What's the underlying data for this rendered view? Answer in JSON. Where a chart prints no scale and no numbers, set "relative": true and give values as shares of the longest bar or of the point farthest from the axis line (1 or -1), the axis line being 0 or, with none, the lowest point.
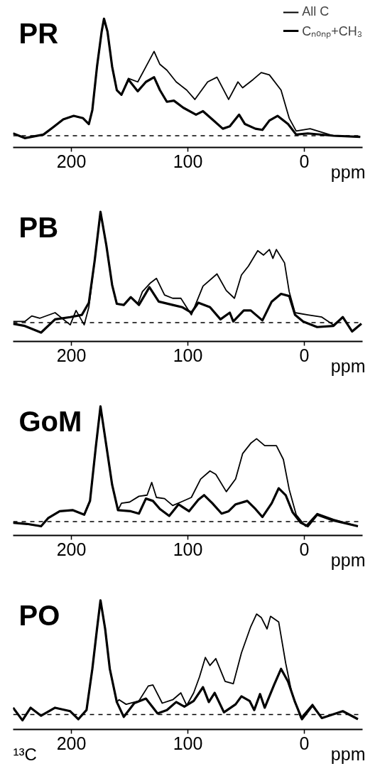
{
  "chart_data": [
    {
      "type": "line",
      "title": "PR",
      "xlabel": "ppm",
      "relative": true,
      "xlim": [
        250,
        -50
      ],
      "xticks": [
        200,
        100,
        0
      ],
      "tick_labels": "x",
      "grid": false,
      "marker": "none",
      "line_style": "solid",
      "legend": "top right",
      "ref_lines": [
        {
          "axis": "y",
          "value": 0,
          "label": null,
          "line_style": "dashed",
          "color": "#000000"
        }
      ],
      "series": [
        {
          "name": "All C",
          "color": "#000000",
          "x": [
            250,
            240,
            224,
            216,
            207,
            198,
            190,
            185,
            182,
            178,
            174,
            172,
            169,
            165,
            161,
            157,
            151,
            143,
            136,
            129,
            124,
            118,
            110,
            101,
            94,
            83,
            75,
            65,
            57,
            53,
            44,
            37,
            30,
            20,
            13,
            7,
            -5,
            -25,
            -48
          ],
          "values": [
            0.02,
            -0.02,
            0.01,
            0.07,
            0.14,
            0.17,
            0.15,
            0.1,
            0.22,
            0.59,
            0.89,
            1.0,
            0.89,
            0.59,
            0.39,
            0.35,
            0.49,
            0.46,
            0.59,
            0.72,
            0.61,
            0.56,
            0.46,
            0.39,
            0.31,
            0.46,
            0.5,
            0.31,
            0.46,
            0.41,
            0.48,
            0.54,
            0.52,
            0.39,
            0.15,
            0.04,
            0.06,
            0.0,
            -0.01
          ]
        },
        {
          "name": "Cₙₒₙₚ+CH₃",
          "color": "#000000",
          "x": [
            250,
            240,
            224,
            216,
            207,
            198,
            190,
            185,
            182,
            178,
            174,
            172,
            169,
            165,
            161,
            157,
            151,
            143,
            136,
            129,
            124,
            118,
            112,
            104,
            93,
            87,
            79,
            70,
            64,
            56,
            51,
            42,
            36,
            30,
            23,
            14,
            7,
            -3,
            -25,
            -48
          ],
          "values": [
            0.02,
            -0.02,
            0.01,
            0.07,
            0.14,
            0.17,
            0.15,
            0.1,
            0.22,
            0.59,
            0.89,
            1.0,
            0.89,
            0.59,
            0.39,
            0.35,
            0.48,
            0.38,
            0.46,
            0.5,
            0.39,
            0.29,
            0.3,
            0.24,
            0.18,
            0.21,
            0.14,
            0.06,
            0.08,
            0.18,
            0.1,
            0.06,
            0.05,
            0.13,
            0.17,
            0.1,
            0.01,
            0.02,
            0.0,
            -0.01
          ]
        }
      ]
    },
    {
      "type": "line",
      "title": "PB",
      "xlabel": "ppm",
      "relative": true,
      "xlim": [
        250,
        -50
      ],
      "xticks": [
        200,
        100,
        0
      ],
      "tick_labels": "x",
      "grid": false,
      "marker": "none",
      "line_style": "solid",
      "ref_lines": [
        {
          "axis": "y",
          "value": 0,
          "label": null,
          "line_style": "dashed",
          "color": "#000000"
        }
      ],
      "series": [
        {
          "color": "#000000",
          "x": [
            250,
            240,
            234,
            227,
            214,
            201,
            196,
            189,
            185,
            180,
            175,
            170,
            165,
            161,
            155,
            149,
            143,
            139,
            132,
            127,
            120,
            113,
            106,
            97,
            87,
            75,
            67,
            60,
            54,
            48,
            40,
            35,
            30,
            27,
            24,
            17,
            13,
            8,
            -3,
            -15,
            -25,
            -33,
            -41,
            -49
          ],
          "values": [
            0.01,
            0.01,
            0.06,
            0.04,
            0.09,
            -0.02,
            0.11,
            -0.02,
            0.14,
            0.56,
            1.0,
            0.7,
            0.34,
            0.17,
            0.16,
            0.23,
            0.17,
            0.28,
            0.36,
            0.4,
            0.25,
            0.22,
            0.22,
            0.07,
            0.33,
            0.44,
            0.29,
            0.22,
            0.43,
            0.51,
            0.65,
            0.61,
            0.66,
            0.58,
            0.66,
            0.54,
            0.28,
            0.09,
            0.07,
            0.05,
            -0.02,
            0.05,
            -0.08,
            -0.01
          ]
        },
        {
          "color": "#000000",
          "x": [
            250,
            240,
            226,
            214,
            201,
            191,
            185,
            180,
            175,
            170,
            165,
            161,
            155,
            149,
            142,
            133,
            125,
            113,
            105,
            97,
            91,
            81,
            72,
            64,
            61,
            52,
            46,
            36,
            28,
            20,
            13,
            8,
            1,
            -11,
            -25,
            -33,
            -41,
            -49
          ],
          "values": [
            -0.01,
            -0.03,
            -0.09,
            0.03,
            0.05,
            0.07,
            0.18,
            0.56,
            1.0,
            0.7,
            0.34,
            0.17,
            0.16,
            0.23,
            0.16,
            0.32,
            0.19,
            0.16,
            0.14,
            0.09,
            0.18,
            0.14,
            0.03,
            0.09,
            0.01,
            0.11,
            0.11,
            0.02,
            0.19,
            0.26,
            0.24,
            0.07,
            0.01,
            -0.04,
            -0.03,
            0.05,
            -0.08,
            -0.01
          ]
        }
      ]
    },
    {
      "type": "line",
      "title": "GoM",
      "xlabel": "ppm",
      "relative": true,
      "xlim": [
        250,
        -50
      ],
      "xticks": [
        200,
        100,
        0
      ],
      "tick_labels": "x",
      "grid": false,
      "marker": "none",
      "line_style": "solid",
      "ref_lines": [
        {
          "axis": "y",
          "value": 0,
          "label": null,
          "line_style": "dashed",
          "color": "#000000"
        }
      ],
      "series": [
        {
          "color": "#000000",
          "x": [
            250,
            238,
            226,
            220,
            210,
            199,
            189,
            184,
            179,
            175,
            170,
            165,
            160,
            157,
            150,
            142,
            135,
            131,
            127,
            120,
            113,
            106,
            97,
            89,
            81,
            76,
            67,
            59,
            53,
            46,
            41,
            34,
            24,
            18,
            13,
            7,
            -1,
            -11,
            -25,
            -46
          ],
          "values": [
            -0.01,
            -0.02,
            -0.04,
            0.03,
            0.09,
            0.1,
            0.06,
            0.18,
            0.65,
            1.0,
            0.66,
            0.32,
            0.1,
            0.16,
            0.17,
            0.22,
            0.23,
            0.34,
            0.21,
            0.2,
            0.14,
            0.17,
            0.21,
            0.37,
            0.44,
            0.41,
            0.26,
            0.37,
            0.59,
            0.68,
            0.72,
            0.66,
            0.66,
            0.54,
            0.28,
            0.06,
            -0.04,
            0.07,
            0.02,
            -0.04
          ]
        },
        {
          "color": "#000000",
          "x": [
            250,
            238,
            226,
            220,
            210,
            199,
            189,
            184,
            179,
            175,
            170,
            165,
            160,
            149,
            142,
            136,
            130,
            124,
            116,
            108,
            99,
            91,
            86,
            79,
            71,
            65,
            59,
            49,
            42,
            36,
            28,
            22,
            16,
            10,
            3,
            -3,
            -11,
            -25,
            -46
          ],
          "values": [
            -0.01,
            -0.02,
            -0.04,
            0.03,
            0.09,
            0.1,
            0.06,
            0.18,
            0.65,
            1.0,
            0.66,
            0.32,
            0.1,
            0.09,
            0.07,
            0.2,
            0.18,
            0.11,
            0.05,
            0.15,
            0.09,
            0.19,
            0.23,
            0.16,
            0.07,
            0.09,
            0.15,
            0.18,
            0.11,
            0.04,
            0.16,
            0.29,
            0.23,
            0.08,
            -0.01,
            -0.04,
            0.06,
            0.01,
            -0.04
          ]
        }
      ]
    },
    {
      "type": "line",
      "title": "PO",
      "xlabel": "ppm",
      "relative": true,
      "xlim": [
        250,
        -50
      ],
      "xticks": [
        200,
        100,
        0
      ],
      "tick_labels": "x",
      "grid": false,
      "marker": "none",
      "line_style": "solid",
      "annotations": [
        "¹³C"
      ],
      "ref_lines": [
        {
          "axis": "y",
          "value": 0,
          "label": null,
          "line_style": "dashed",
          "color": "#000000"
        }
      ],
      "series": [
        {
          "color": "#000000",
          "x": [
            250,
            242,
            235,
            226,
            214,
            201,
            194,
            187,
            182,
            178,
            175,
            171,
            167,
            161,
            159,
            153,
            142,
            134,
            130,
            122,
            113,
            106,
            101,
            95,
            90,
            85,
            81,
            76,
            68,
            61,
            54,
            46,
            41,
            37,
            32,
            29,
            22,
            16,
            11,
            3,
            -7,
            -15,
            -33,
            -46
          ],
          "values": [
            0.06,
            -0.05,
            0.06,
            -0.01,
            0.06,
            0.03,
            -0.04,
            0.04,
            0.4,
            0.75,
            1.0,
            0.75,
            0.4,
            0.11,
            0.13,
            0.09,
            0.12,
            0.25,
            0.26,
            0.1,
            0.13,
            0.19,
            0.08,
            0.19,
            0.33,
            0.5,
            0.43,
            0.49,
            0.29,
            0.27,
            0.54,
            0.77,
            0.88,
            0.85,
            0.75,
            0.86,
            0.81,
            0.45,
            0.2,
            -0.03,
            0.09,
            -0.03,
            0.03,
            -0.04
          ]
        },
        {
          "color": "#000000",
          "x": [
            250,
            242,
            235,
            226,
            214,
            201,
            194,
            187,
            182,
            178,
            175,
            171,
            167,
            161,
            155,
            146,
            136,
            126,
            118,
            110,
            103,
            95,
            87,
            82,
            77,
            69,
            59,
            54,
            47,
            43,
            38,
            34,
            26,
            20,
            14,
            8,
            2,
            -7,
            -15,
            -33,
            -46
          ],
          "values": [
            0.06,
            -0.05,
            0.06,
            -0.01,
            0.06,
            0.03,
            -0.04,
            0.04,
            0.4,
            0.75,
            1.0,
            0.75,
            0.4,
            0.11,
            -0.02,
            0.1,
            0.14,
            0.01,
            0.04,
            0.11,
            0.07,
            0.12,
            0.24,
            0.11,
            0.19,
            0.02,
            0.09,
            0.16,
            0.12,
            0.04,
            0.18,
            0.06,
            0.26,
            0.4,
            0.29,
            0.11,
            -0.04,
            0.08,
            -0.03,
            0.03,
            -0.04
          ]
        }
      ]
    }
  ]
}
